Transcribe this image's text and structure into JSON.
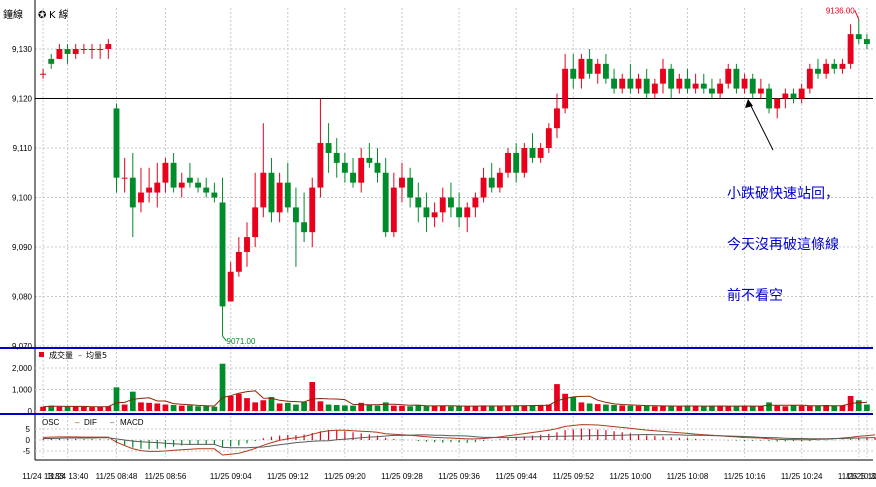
{
  "header": {
    "tab1": "鐘線",
    "tab2": "K 線"
  },
  "annotation": {
    "line1": "小跌破快速站回，",
    "line2": "今天沒再破這條線",
    "line3": "前不看空"
  },
  "colors": {
    "up": "#e8001c",
    "down": "#008c2a",
    "volume_ma": "#8b2500",
    "dif": "#b23a1a",
    "macd": "#5a5a5a",
    "blue_divider": "#0000cc",
    "support_line": "#000000"
  },
  "chart_data": [
    {
      "type": "candlestick",
      "name": "price",
      "ylim": [
        9070,
        9137
      ],
      "yticks": [
        "9,070",
        "9,080",
        "9,090",
        "9,100",
        "9,110",
        "9,120",
        "9,130"
      ],
      "support_line": 9120,
      "high_label": "9136.00",
      "low_label": "9071.00",
      "candles": [
        {
          "o": 9125,
          "h": 9126,
          "l": 9124,
          "c": 9125
        },
        {
          "o": 9128,
          "h": 9129,
          "l": 9126,
          "c": 9127
        },
        {
          "o": 9128,
          "h": 9131,
          "l": 9128,
          "c": 9130
        },
        {
          "o": 9130,
          "h": 9131,
          "l": 9127,
          "c": 9129
        },
        {
          "o": 9129,
          "h": 9131,
          "l": 9128,
          "c": 9130
        },
        {
          "o": 9130,
          "h": 9131,
          "l": 9129,
          "c": 9130
        },
        {
          "o": 9130,
          "h": 9131,
          "l": 9128,
          "c": 9130
        },
        {
          "o": 9130,
          "h": 9131,
          "l": 9128,
          "c": 9130
        },
        {
          "o": 9130,
          "h": 9132,
          "l": 9128,
          "c": 9131
        },
        {
          "o": 9118,
          "h": 9119,
          "l": 9101,
          "c": 9104
        },
        {
          "o": 9104,
          "h": 9108,
          "l": 9101,
          "c": 9104
        },
        {
          "o": 9104,
          "h": 9109,
          "l": 9092,
          "c": 9098
        },
        {
          "o": 9099,
          "h": 9106,
          "l": 9097,
          "c": 9101
        },
        {
          "o": 9101,
          "h": 9106,
          "l": 9099,
          "c": 9102
        },
        {
          "o": 9101,
          "h": 9107,
          "l": 9098,
          "c": 9103
        },
        {
          "o": 9103,
          "h": 9108,
          "l": 9101,
          "c": 9107
        },
        {
          "o": 9107,
          "h": 9109,
          "l": 9101,
          "c": 9102
        },
        {
          "o": 9102,
          "h": 9105,
          "l": 9100,
          "c": 9103
        },
        {
          "o": 9104,
          "h": 9107,
          "l": 9102,
          "c": 9103
        },
        {
          "o": 9103,
          "h": 9104,
          "l": 9101,
          "c": 9102
        },
        {
          "o": 9102,
          "h": 9104,
          "l": 9100,
          "c": 9101
        },
        {
          "o": 9101,
          "h": 9103,
          "l": 9099,
          "c": 9100
        },
        {
          "o": 9099,
          "h": 9104,
          "l": 9072,
          "c": 9078
        },
        {
          "o": 9079,
          "h": 9087,
          "l": 9079,
          "c": 9085
        },
        {
          "o": 9085,
          "h": 9092,
          "l": 9084,
          "c": 9089
        },
        {
          "o": 9089,
          "h": 9095,
          "l": 9086,
          "c": 9092
        },
        {
          "o": 9092,
          "h": 9105,
          "l": 9090,
          "c": 9098
        },
        {
          "o": 9098,
          "h": 9115,
          "l": 9096,
          "c": 9105
        },
        {
          "o": 9105,
          "h": 9108,
          "l": 9095,
          "c": 9097
        },
        {
          "o": 9097,
          "h": 9105,
          "l": 9095,
          "c": 9103
        },
        {
          "o": 9103,
          "h": 9107,
          "l": 9097,
          "c": 9098
        },
        {
          "o": 9098,
          "h": 9102,
          "l": 9086,
          "c": 9095
        },
        {
          "o": 9095,
          "h": 9101,
          "l": 9091,
          "c": 9093
        },
        {
          "o": 9093,
          "h": 9104,
          "l": 9090,
          "c": 9102
        },
        {
          "o": 9102,
          "h": 9120,
          "l": 9100,
          "c": 9111
        },
        {
          "o": 9111,
          "h": 9115,
          "l": 9105,
          "c": 9109
        },
        {
          "o": 9109,
          "h": 9112,
          "l": 9104,
          "c": 9107
        },
        {
          "o": 9107,
          "h": 9109,
          "l": 9103,
          "c": 9105
        },
        {
          "o": 9105,
          "h": 9108,
          "l": 9102,
          "c": 9103
        },
        {
          "o": 9103,
          "h": 9110,
          "l": 9101,
          "c": 9108
        },
        {
          "o": 9108,
          "h": 9111,
          "l": 9106,
          "c": 9107
        },
        {
          "o": 9107,
          "h": 9110,
          "l": 9103,
          "c": 9105
        },
        {
          "o": 9105,
          "h": 9108,
          "l": 9092,
          "c": 9093
        },
        {
          "o": 9093,
          "h": 9105,
          "l": 9092,
          "c": 9102
        },
        {
          "o": 9102,
          "h": 9107,
          "l": 9099,
          "c": 9104
        },
        {
          "o": 9104,
          "h": 9106,
          "l": 9098,
          "c": 9100
        },
        {
          "o": 9100,
          "h": 9103,
          "l": 9095,
          "c": 9098
        },
        {
          "o": 9098,
          "h": 9101,
          "l": 9093,
          "c": 9096
        },
        {
          "o": 9096,
          "h": 9099,
          "l": 9094,
          "c": 9097
        },
        {
          "o": 9097,
          "h": 9102,
          "l": 9095,
          "c": 9100
        },
        {
          "o": 9100,
          "h": 9103,
          "l": 9096,
          "c": 9098
        },
        {
          "o": 9098,
          "h": 9101,
          "l": 9094,
          "c": 9096
        },
        {
          "o": 9096,
          "h": 9099,
          "l": 9093,
          "c": 9098
        },
        {
          "o": 9098,
          "h": 9101,
          "l": 9096,
          "c": 9100
        },
        {
          "o": 9100,
          "h": 9106,
          "l": 9099,
          "c": 9104
        },
        {
          "o": 9104,
          "h": 9107,
          "l": 9101,
          "c": 9102
        },
        {
          "o": 9102,
          "h": 9106,
          "l": 9101,
          "c": 9105
        },
        {
          "o": 9105,
          "h": 9110,
          "l": 9104,
          "c": 9109
        },
        {
          "o": 9109,
          "h": 9111,
          "l": 9103,
          "c": 9105
        },
        {
          "o": 9105,
          "h": 9111,
          "l": 9104,
          "c": 9110
        },
        {
          "o": 9110,
          "h": 9113,
          "l": 9107,
          "c": 9108
        },
        {
          "o": 9108,
          "h": 9111,
          "l": 9107,
          "c": 9110
        },
        {
          "o": 9110,
          "h": 9115,
          "l": 9109,
          "c": 9114
        },
        {
          "o": 9114,
          "h": 9121,
          "l": 9112,
          "c": 9118
        },
        {
          "o": 9118,
          "h": 9129,
          "l": 9117,
          "c": 9126
        },
        {
          "o": 9126,
          "h": 9129,
          "l": 9122,
          "c": 9124
        },
        {
          "o": 9124,
          "h": 9129,
          "l": 9122,
          "c": 9128
        },
        {
          "o": 9128,
          "h": 9130,
          "l": 9124,
          "c": 9125
        },
        {
          "o": 9125,
          "h": 9128,
          "l": 9123,
          "c": 9127
        },
        {
          "o": 9127,
          "h": 9129,
          "l": 9123,
          "c": 9124
        },
        {
          "o": 9124,
          "h": 9126,
          "l": 9121,
          "c": 9122
        },
        {
          "o": 9122,
          "h": 9125,
          "l": 9121,
          "c": 9124
        },
        {
          "o": 9124,
          "h": 9127,
          "l": 9121,
          "c": 9122
        },
        {
          "o": 9122,
          "h": 9125,
          "l": 9121,
          "c": 9124
        },
        {
          "o": 9124,
          "h": 9126,
          "l": 9120,
          "c": 9121
        },
        {
          "o": 9121,
          "h": 9124,
          "l": 9120,
          "c": 9123
        },
        {
          "o": 9123,
          "h": 9128,
          "l": 9121,
          "c": 9126
        },
        {
          "o": 9126,
          "h": 9127,
          "l": 9120,
          "c": 9122
        },
        {
          "o": 9122,
          "h": 9125,
          "l": 9121,
          "c": 9124
        },
        {
          "o": 9124,
          "h": 9126,
          "l": 9121,
          "c": 9122
        },
        {
          "o": 9122,
          "h": 9125,
          "l": 9121,
          "c": 9123
        },
        {
          "o": 9123,
          "h": 9125,
          "l": 9121,
          "c": 9122
        },
        {
          "o": 9122,
          "h": 9124,
          "l": 9120,
          "c": 9121
        },
        {
          "o": 9121,
          "h": 9124,
          "l": 9120,
          "c": 9123
        },
        {
          "o": 9123,
          "h": 9127,
          "l": 9122,
          "c": 9126
        },
        {
          "o": 9126,
          "h": 9127,
          "l": 9121,
          "c": 9122
        },
        {
          "o": 9122,
          "h": 9125,
          "l": 9121,
          "c": 9124
        },
        {
          "o": 9124,
          "h": 9125,
          "l": 9120,
          "c": 9121
        },
        {
          "o": 9121,
          "h": 9124,
          "l": 9120,
          "c": 9122
        },
        {
          "o": 9122,
          "h": 9123,
          "l": 9117,
          "c": 9118
        },
        {
          "o": 9118,
          "h": 9120,
          "l": 9116,
          "c": 9120
        },
        {
          "o": 9120,
          "h": 9122,
          "l": 9118,
          "c": 9121
        },
        {
          "o": 9121,
          "h": 9122,
          "l": 9119,
          "c": 9120
        },
        {
          "o": 9120,
          "h": 9123,
          "l": 9119,
          "c": 9122
        },
        {
          "o": 9122,
          "h": 9127,
          "l": 9121,
          "c": 9126
        },
        {
          "o": 9126,
          "h": 9128,
          "l": 9124,
          "c": 9125
        },
        {
          "o": 9125,
          "h": 9128,
          "l": 9124,
          "c": 9127
        },
        {
          "o": 9127,
          "h": 9128,
          "l": 9125,
          "c": 9126
        },
        {
          "o": 9126,
          "h": 9128,
          "l": 9125,
          "c": 9127
        },
        {
          "o": 9127,
          "h": 9135,
          "l": 9126,
          "c": 9133
        },
        {
          "o": 9133,
          "h": 9136,
          "l": 9131,
          "c": 9132
        },
        {
          "o": 9132,
          "h": 9133,
          "l": 9130,
          "c": 9131
        }
      ]
    },
    {
      "type": "bar",
      "name": "volume",
      "legend_volume": "成交量",
      "legend_ma": "均量5",
      "ylim": [
        0,
        2500
      ],
      "yticks": [
        "0",
        "1,000",
        "2,000"
      ],
      "values": [
        200,
        250,
        200,
        200,
        220,
        200,
        180,
        200,
        220,
        1100,
        300,
        900,
        400,
        380,
        350,
        300,
        280,
        250,
        260,
        220,
        230,
        200,
        2200,
        700,
        800,
        600,
        400,
        500,
        650,
        350,
        380,
        300,
        420,
        1350,
        450,
        300,
        280,
        260,
        250,
        380,
        300,
        250,
        400,
        250,
        240,
        220,
        260,
        230,
        240,
        250,
        220,
        230,
        210,
        240,
        260,
        220,
        230,
        240,
        250,
        260,
        270,
        280,
        300,
        1250,
        800,
        650,
        400,
        350,
        320,
        300,
        280,
        260,
        250,
        240,
        230,
        220,
        250,
        230,
        220,
        240,
        230,
        210,
        250,
        240,
        220,
        230,
        220,
        240,
        230,
        400,
        250,
        220,
        260,
        240,
        230,
        250,
        280,
        240,
        260,
        700,
        500,
        300
      ]
    },
    {
      "type": "bar",
      "name": "macd",
      "legend_osc": "OSC",
      "legend_dif": "DIF",
      "legend_macd": "MACD",
      "ylim": [
        -10,
        7
      ],
      "yticks": [
        "-5",
        "0",
        "5"
      ],
      "osc": [
        0.5,
        0.6,
        0.6,
        0.5,
        0.5,
        0.4,
        0.4,
        0.3,
        0.3,
        -1.5,
        -2.5,
        -3.5,
        -4.0,
        -4.2,
        -4.0,
        -3.5,
        -3.0,
        -2.5,
        -2.2,
        -2.0,
        -2.0,
        -2.0,
        -3.5,
        -3.0,
        -2.5,
        -1.5,
        -0.5,
        0.8,
        1.5,
        2.0,
        2.3,
        2.2,
        2.5,
        3.2,
        4.0,
        4.5,
        4.3,
        4.0,
        3.5,
        3.0,
        2.5,
        2.0,
        1.0,
        0.5,
        0.3,
        0.0,
        -0.5,
        -0.8,
        -1.0,
        -1.2,
        -1.0,
        -1.2,
        -1.3,
        -1.0,
        -0.5,
        -0.2,
        0.3,
        0.8,
        1.2,
        1.6,
        2.0,
        2.4,
        2.8,
        3.5,
        4.5,
        4.8,
        5.2,
        5.0,
        4.8,
        4.5,
        4.0,
        3.5,
        3.0,
        2.5,
        2.0,
        1.8,
        1.5,
        1.2,
        1.0,
        0.8,
        0.5,
        0.3,
        0.2,
        0.0,
        -0.2,
        -0.3,
        -0.5,
        -0.4,
        -0.3,
        -0.5,
        -0.7,
        -0.6,
        -0.5,
        -0.6,
        -0.5,
        -0.3,
        -0.2,
        -0.1,
        0.2,
        0.4,
        0.8,
        1.0,
        1.2
      ],
      "dif": [
        1.2,
        1.3,
        1.4,
        1.4,
        1.4,
        1.3,
        1.3,
        1.3,
        1.3,
        -1.0,
        -2.5,
        -4.0,
        -4.8,
        -5.2,
        -5.2,
        -5.0,
        -4.7,
        -4.4,
        -4.2,
        -4.0,
        -4.0,
        -4.0,
        -6.8,
        -6.5,
        -6.0,
        -5.0,
        -3.8,
        -2.4,
        -1.2,
        -0.2,
        0.6,
        1.0,
        1.6,
        2.6,
        3.6,
        4.2,
        4.4,
        4.4,
        4.2,
        4.0,
        3.8,
        3.5,
        2.8,
        2.6,
        2.4,
        2.2,
        1.8,
        1.5,
        1.2,
        1.0,
        0.9,
        0.7,
        0.5,
        0.5,
        0.7,
        1.0,
        1.4,
        1.9,
        2.4,
        2.9,
        3.4,
        3.9,
        4.4,
        5.2,
        6.2,
        6.6,
        7.0,
        6.9,
        6.8,
        6.5,
        6.1,
        5.7,
        5.3,
        4.9,
        4.5,
        4.2,
        3.9,
        3.6,
        3.3,
        3.0,
        2.7,
        2.4,
        2.2,
        1.9,
        1.6,
        1.4,
        1.1,
        1.0,
        0.9,
        0.6,
        0.3,
        0.2,
        0.2,
        0.1,
        0.1,
        0.3,
        0.4,
        0.6,
        0.9,
        1.2,
        1.7,
        2.0,
        2.3
      ]
    }
  ],
  "x_labels": [
    "11/24 13:33",
    "11/24 13:40",
    "11/25 08:48",
    "11/25 08:56",
    "11/25 09:04",
    "11/25 09:12",
    "11/25 09:20",
    "11/25 09:28",
    "11/25 09:36",
    "11/25 09:44",
    "11/25 09:52",
    "11/25 10:00",
    "11/25 10:08",
    "11/25 10:16",
    "11/25 10:24",
    "11/25 10:32",
    "11/25 10:40"
  ]
}
